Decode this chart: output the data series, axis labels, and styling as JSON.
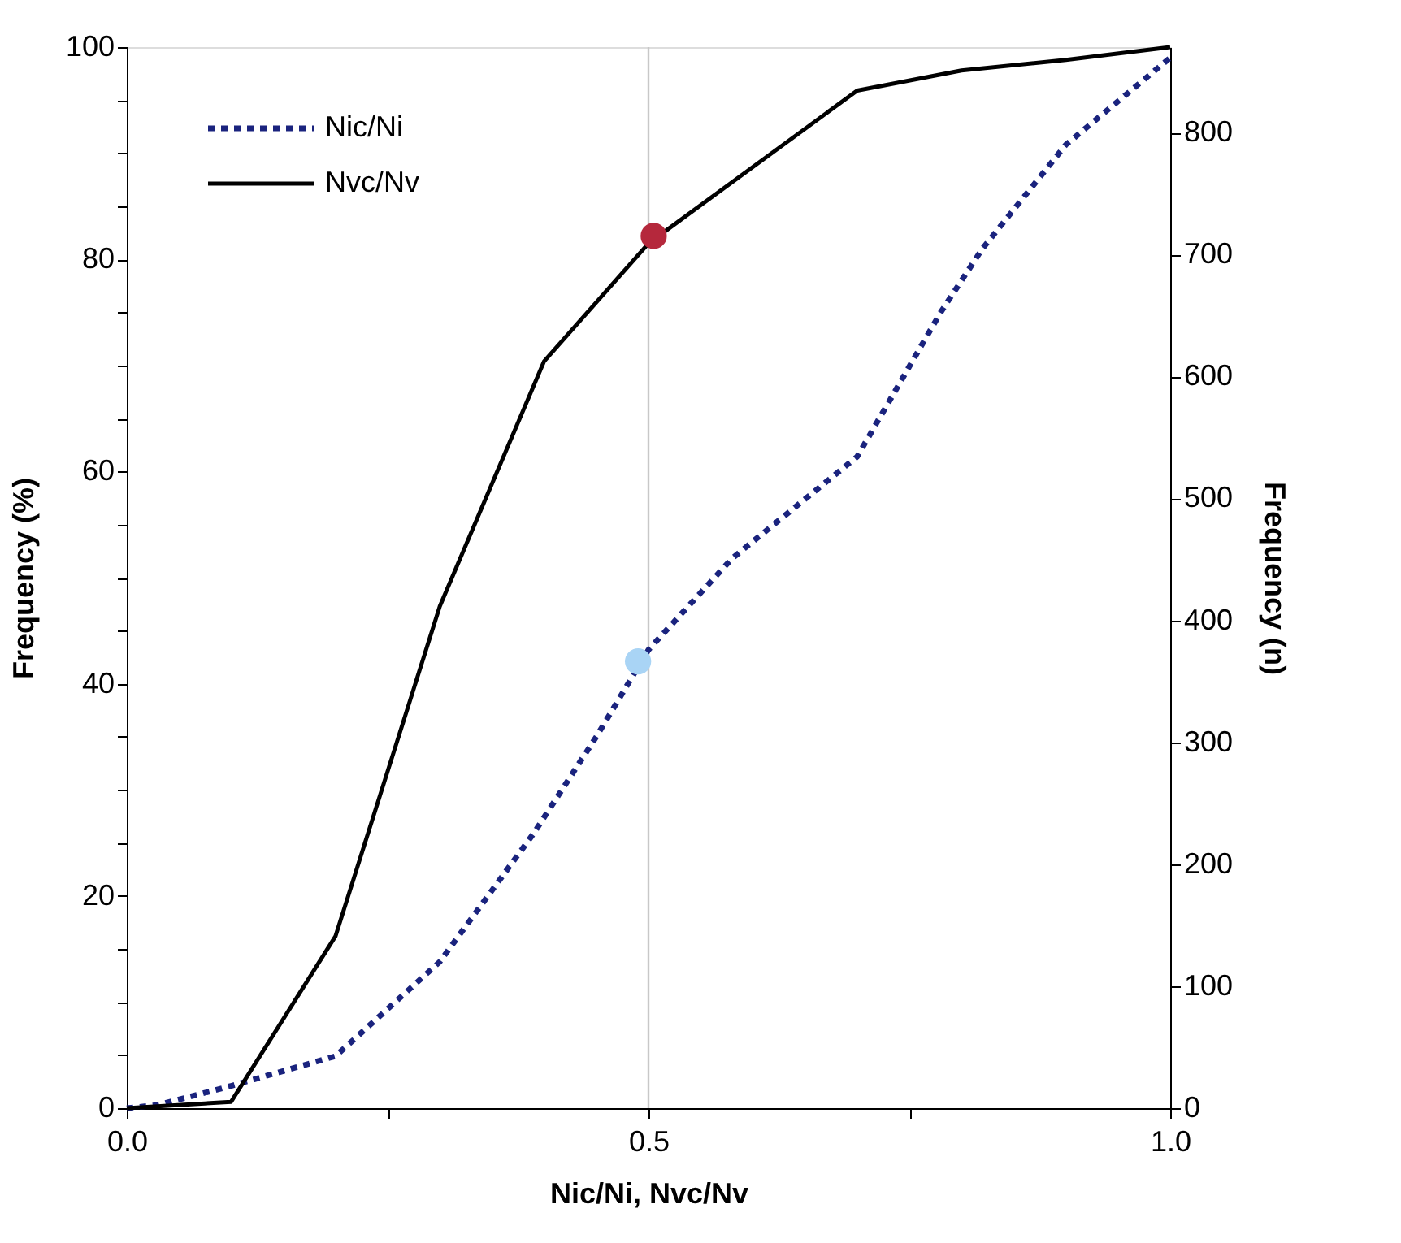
{
  "chart_data": {
    "type": "line",
    "xlabel": "Nic/Ni, Nvc/Nv",
    "ylabel": "Frequency (%)",
    "y2label": "Frequency (n)",
    "xlim": [
      0,
      1
    ],
    "ylim": [
      0,
      100
    ],
    "y2lim": [
      0,
      870
    ],
    "xticks": [
      {
        "value": 0,
        "label": "0.0"
      },
      {
        "value": 0.25,
        "label": null
      },
      {
        "value": 0.5,
        "label": "0.5"
      },
      {
        "value": 0.75,
        "label": null
      },
      {
        "value": 1,
        "label": "1.0"
      }
    ],
    "yticks": [
      0,
      {
        "value": 5,
        "label": null
      },
      {
        "value": 10,
        "label": null
      },
      {
        "value": 15,
        "label": null
      },
      20,
      {
        "value": 25,
        "label": null
      },
      {
        "value": 30,
        "label": null
      },
      {
        "value": 35,
        "label": null
      },
      40,
      {
        "value": 45,
        "label": null
      },
      {
        "value": 50,
        "label": null
      },
      {
        "value": 55,
        "label": null
      },
      60,
      {
        "value": 65,
        "label": null
      },
      {
        "value": 70,
        "label": null
      },
      {
        "value": 75,
        "label": null
      },
      80,
      {
        "value": 85,
        "label": null
      },
      {
        "value": 90,
        "label": null
      },
      {
        "value": 95,
        "label": null
      },
      100
    ],
    "y2ticks": [
      0,
      100,
      200,
      300,
      400,
      500,
      600,
      700,
      800
    ],
    "grid": false,
    "legend": "top left",
    "series": [
      {
        "name": "Nic/Ni",
        "color": "#1a237e",
        "line_style": "dotted",
        "marker": "none",
        "x": [
          0,
          0.03,
          0.1,
          0.2,
          0.3,
          0.39,
          0.45,
          0.5,
          0.58,
          0.7,
          0.78,
          0.82,
          0.9,
          1.0
        ],
        "values": [
          0,
          0.3,
          2.1,
          4.9,
          13.8,
          25.9,
          35,
          43.2,
          51.8,
          61.4,
          75,
          81,
          90.8,
          99
        ]
      },
      {
        "name": "Nvc/Nv",
        "color": "#000000",
        "line_style": "solid",
        "marker": "none",
        "x": [
          0,
          0.1,
          0.2,
          0.3,
          0.4,
          0.5,
          0.7,
          0.8,
          0.9,
          1.0
        ],
        "values": [
          0,
          0.6,
          16.2,
          47.3,
          70.4,
          81.5,
          95.9,
          97.8,
          98.8,
          100
        ]
      },
      {
        "type": "scatter",
        "color": "#b5283c",
        "marker": "circle",
        "x": [
          0.505
        ],
        "values": [
          82.2
        ]
      },
      {
        "type": "scatter",
        "color": "#a9d4f5",
        "marker": "circle",
        "x": [
          0.49
        ],
        "values": [
          42.1
        ]
      }
    ],
    "ref_lines": [
      {
        "axis": "x",
        "value": 0.5,
        "color": "#c8c8c8",
        "line_style": "solid"
      }
    ]
  }
}
